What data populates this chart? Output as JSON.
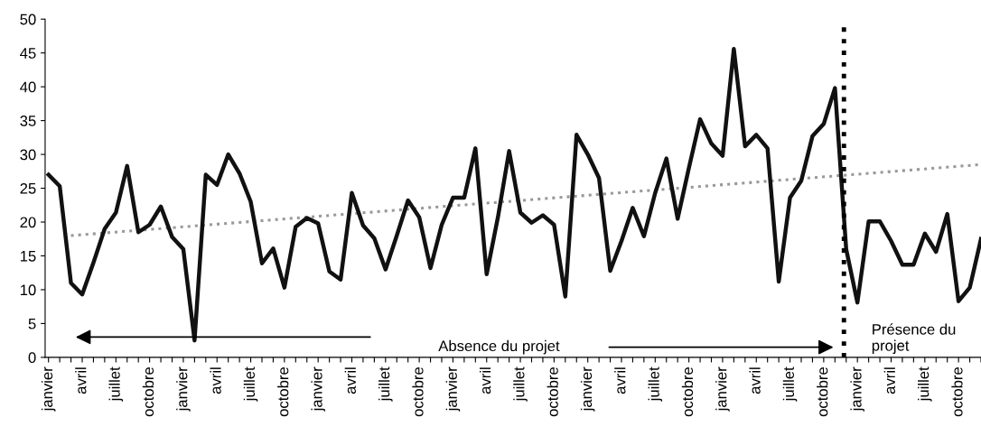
{
  "chart_data": {
    "type": "line",
    "categories": [
      "janvier",
      null,
      null,
      "avril",
      null,
      null,
      "juillet",
      null,
      null,
      "octobre",
      null,
      null,
      "janvier",
      null,
      null,
      "avril",
      null,
      null,
      "juillet",
      null,
      null,
      "octobre",
      null,
      null,
      "janvier",
      null,
      null,
      "avril",
      null,
      null,
      "juillet",
      null,
      null,
      "octobre",
      null,
      null,
      "janvier",
      null,
      null,
      "avril",
      null,
      null,
      "juillet",
      null,
      null,
      "octobre",
      null,
      null,
      "janvier",
      null,
      null,
      "avril",
      null,
      null,
      "juillet",
      null,
      null,
      "octobre",
      null,
      null,
      "janvier",
      null,
      null,
      "avril",
      null,
      null,
      "juillet",
      null,
      null,
      "octobre",
      null,
      null,
      "janvier",
      null,
      null,
      "avril",
      null,
      null,
      "juillet",
      null,
      null,
      "octobre",
      null,
      null
    ],
    "series": [
      {
        "type": "line",
        "color": "#111111",
        "line_style": "solid",
        "values": [
          27,
          25.3,
          11,
          9.3,
          14,
          19,
          21.4,
          28.3,
          18.5,
          19.6,
          22.3,
          17.8,
          16,
          2.5,
          27,
          25.5,
          30,
          27.2,
          23,
          13.9,
          16.1,
          10.3,
          19.3,
          20.6,
          19.8,
          12.7,
          11.5,
          24.3,
          19.5,
          17.6,
          13,
          18,
          23.2,
          20.7,
          13.2,
          19.6,
          23.6,
          23.6,
          30.9,
          12.3,
          20.7,
          30.5,
          21.4,
          19.9,
          21,
          19.6,
          9,
          32.9,
          30,
          26.5,
          12.8,
          17.2,
          22.1,
          17.9,
          24.3,
          29.4,
          20.5,
          28,
          35.2,
          31.6,
          29.8,
          45.6,
          31.2,
          32.9,
          30.9,
          11.2,
          23.6,
          26.1,
          32.7,
          34.5,
          39.8,
          16,
          8.1,
          20.1,
          20.1,
          17.2,
          13.7,
          13.7,
          18.3,
          15.6,
          21.2,
          8.3,
          10.3,
          17.5
        ]
      },
      {
        "type": "line",
        "color": "#999999",
        "line_style": "dotted",
        "values": [
          null,
          null,
          18,
          null,
          null,
          null,
          null,
          null,
          null,
          null,
          null,
          null,
          null,
          null,
          null,
          null,
          null,
          null,
          null,
          null,
          null,
          null,
          null,
          null,
          null,
          null,
          null,
          null,
          null,
          null,
          null,
          null,
          null,
          null,
          null,
          null,
          null,
          null,
          null,
          null,
          null,
          null,
          null,
          null,
          null,
          null,
          null,
          null,
          null,
          null,
          null,
          null,
          null,
          null,
          null,
          null,
          null,
          null,
          null,
          null,
          null,
          null,
          null,
          null,
          null,
          null,
          null,
          null,
          null,
          null,
          null,
          null,
          null,
          null,
          null,
          null,
          null,
          null,
          null,
          null,
          null,
          null,
          null,
          28.5
        ]
      }
    ],
    "ylim": [
      0,
      50
    ],
    "yticks": [
      0,
      5,
      10,
      15,
      20,
      25,
      30,
      35,
      40,
      45,
      50
    ],
    "annotations": [
      "Absence du projet",
      "Présence du\nprojet"
    ],
    "grid": false,
    "legend": false
  }
}
